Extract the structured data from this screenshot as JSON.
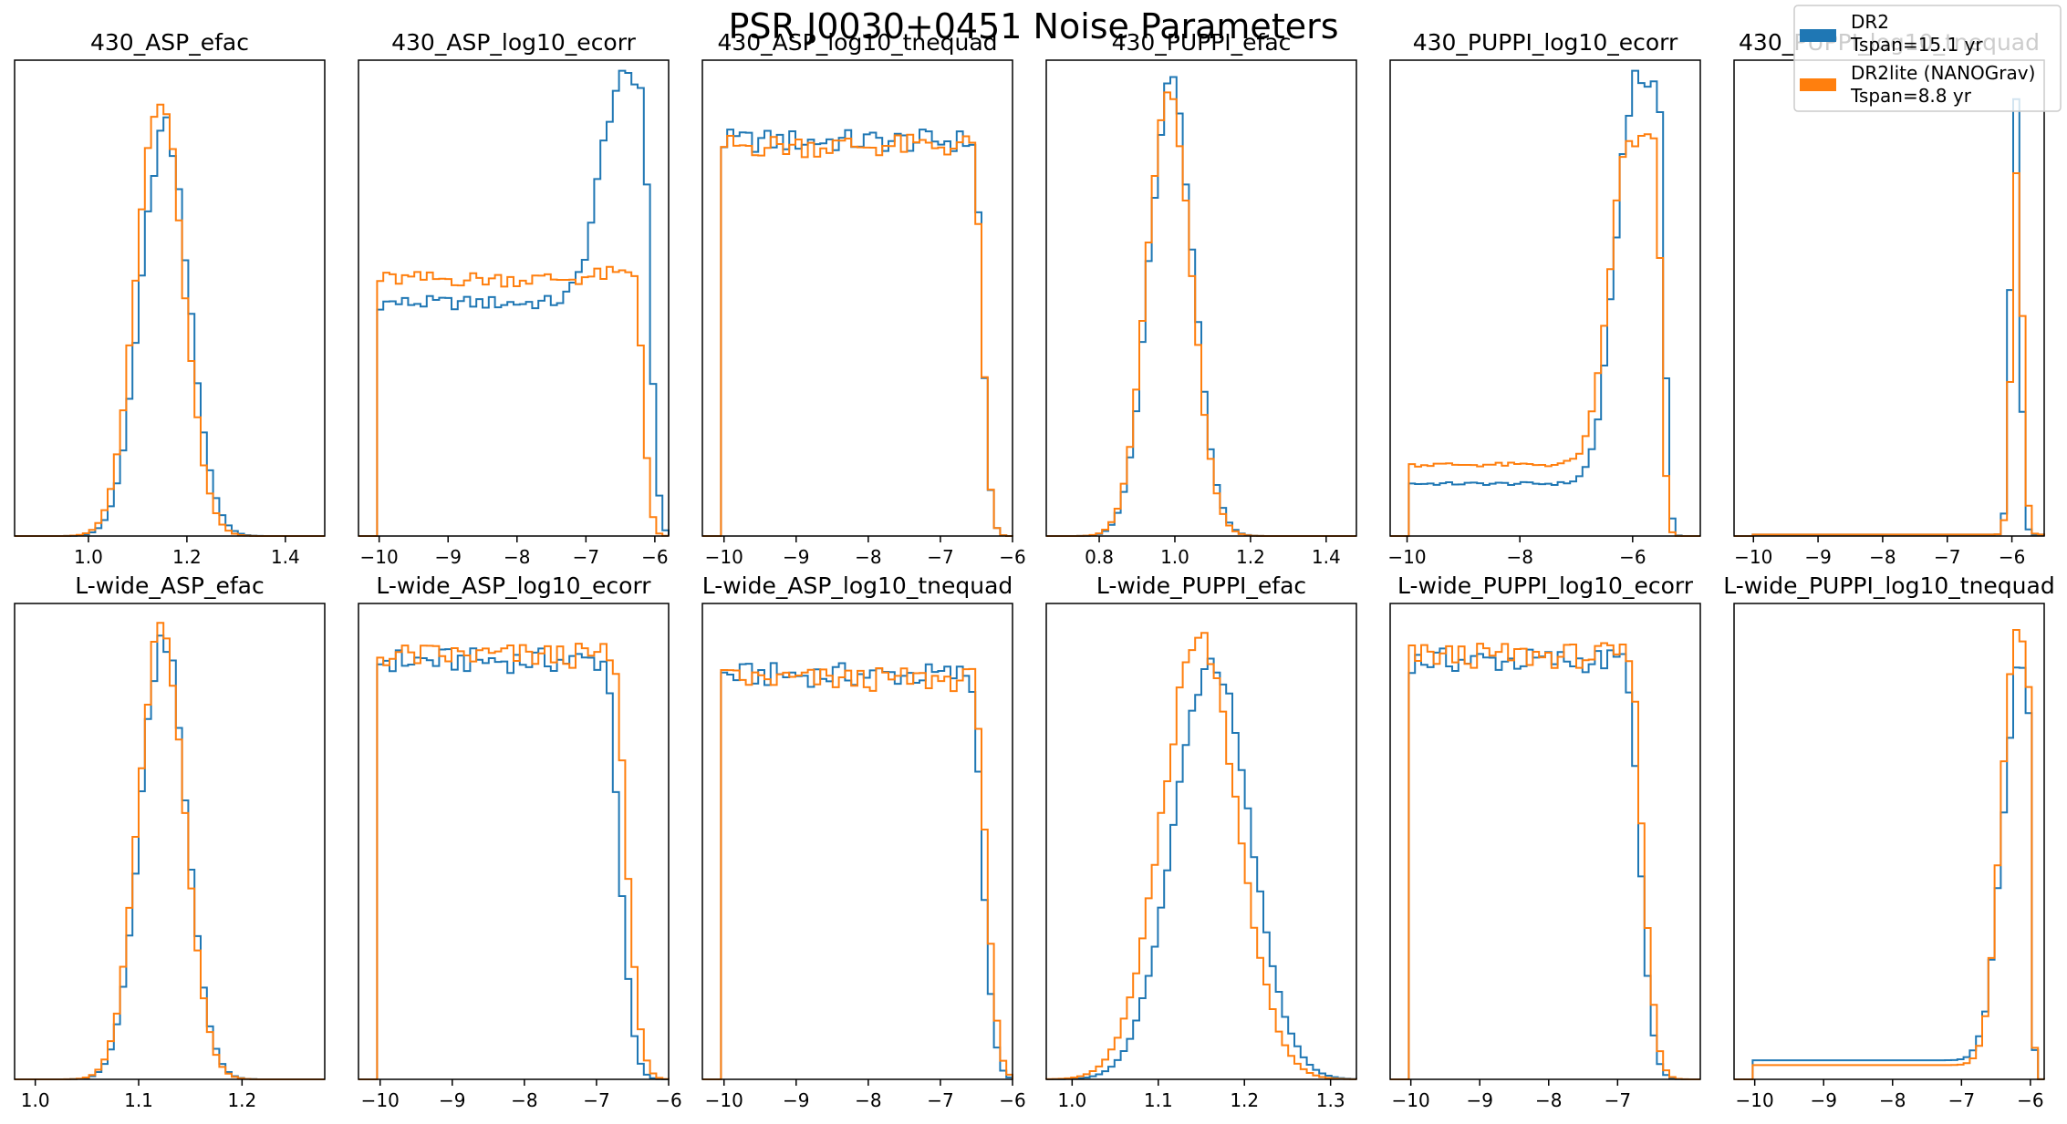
{
  "chart_data": {
    "type": "histogram-grid",
    "title": "PSR J0030+0451 Noise Parameters",
    "legend": {
      "placement": "top-right",
      "entries": [
        {
          "label_line1": "DR2",
          "label_line2": "Tspan=15.1 yr",
          "color": "#1f77b4"
        },
        {
          "label_line1": "DR2lite (NANOGrav)",
          "label_line2": "Tspan=8.8 yr",
          "color": "#ff7f0e"
        }
      ]
    },
    "panels": [
      {
        "title": "430_ASP_efac",
        "xlim": [
          0.85,
          1.48
        ],
        "ticks": [
          1.0,
          1.2,
          1.4
        ],
        "tick_labels": [
          "1.0",
          "1.2",
          "1.4"
        ],
        "series": [
          {
            "name": "DR2",
            "shape": "gauss",
            "mu": 1.155,
            "sigma": 0.048,
            "ymax": 0.86
          },
          {
            "name": "DR2lite (NANOGrav)",
            "shape": "gauss",
            "mu": 1.145,
            "sigma": 0.047,
            "ymax": 0.93
          }
        ]
      },
      {
        "title": "430_ASP_log10_ecorr",
        "xlim": [
          -10.3,
          -5.8
        ],
        "ticks": [
          -10,
          -9,
          -8,
          -7,
          -6
        ],
        "tick_labels": [
          "−10",
          "−9",
          "−8",
          "−7",
          "−6"
        ],
        "series": [
          {
            "name": "DR2",
            "shape": "flatpeak",
            "xmin": -10,
            "base": 0.49,
            "peak_at": -6.5,
            "peak_h": 0.95,
            "rise_w": 0.3,
            "cutoff": -6.2,
            "tail_w": 0.12
          },
          {
            "name": "DR2lite (NANOGrav)",
            "shape": "flatpeak",
            "xmin": -10,
            "base": 0.54,
            "peak_at": -6.6,
            "peak_h": 0.55,
            "rise_w": 0.3,
            "cutoff": -6.3,
            "tail_w": 0.12
          }
        ]
      },
      {
        "title": "430_ASP_log10_tnequad",
        "xlim": [
          -10.3,
          -6.0
        ],
        "ticks": [
          -10,
          -9,
          -8,
          -7,
          -6
        ],
        "tick_labels": [
          "−10",
          "−9",
          "−8",
          "−7",
          "−6"
        ],
        "series": [
          {
            "name": "DR2",
            "shape": "plateau",
            "xmin": -10,
            "level": 0.83,
            "cutoff": -6.55,
            "tail_w": 0.12
          },
          {
            "name": "DR2lite (NANOGrav)",
            "shape": "plateau",
            "xmin": -10,
            "level": 0.82,
            "cutoff": -6.55,
            "tail_w": 0.12
          }
        ]
      },
      {
        "title": "430_PUPPI_efac",
        "xlim": [
          0.66,
          1.48
        ],
        "ticks": [
          0.8,
          1.0,
          1.2,
          1.4
        ],
        "tick_labels": [
          "0.8",
          "1.0",
          "1.2",
          "1.4"
        ],
        "series": [
          {
            "name": "DR2",
            "shape": "gauss",
            "mu": 0.99,
            "sigma": 0.058,
            "ymax": 0.95
          },
          {
            "name": "DR2lite (NANOGrav)",
            "shape": "gauss",
            "mu": 0.985,
            "sigma": 0.058,
            "ymax": 0.94
          }
        ]
      },
      {
        "title": "430_PUPPI_log10_ecorr",
        "xlim": [
          -10.3,
          -4.8
        ],
        "ticks": [
          -10,
          -8,
          -6
        ],
        "tick_labels": [
          "−10",
          "−8",
          "−6"
        ],
        "series": [
          {
            "name": "DR2",
            "shape": "flatpeak",
            "xmin": -10,
            "base": 0.11,
            "peak_at": -5.95,
            "peak_h": 0.95,
            "rise_w": 0.35,
            "cutoff": -5.55,
            "tail_w": 0.1
          },
          {
            "name": "DR2lite (NANOGrav)",
            "shape": "flatpeak",
            "xmin": -10,
            "base": 0.15,
            "peak_at": -6.05,
            "peak_h": 0.83,
            "rise_w": 0.35,
            "cutoff": -5.6,
            "tail_w": 0.1
          }
        ]
      },
      {
        "title": "430_PUPPI_log10_tnequad",
        "xlim": [
          -10.3,
          -5.5
        ],
        "ticks": [
          -10,
          -9,
          -8,
          -7,
          -6
        ],
        "tick_labels": [
          "−10",
          "−9",
          "−8",
          "−7",
          "−6"
        ],
        "series": [
          {
            "name": "DR2",
            "shape": "spike",
            "xmin": -10,
            "base": 0.003,
            "mu": -5.95,
            "sigma": 0.07,
            "ymax": 0.97
          },
          {
            "name": "DR2lite (NANOGrav)",
            "shape": "spike",
            "xmin": -10,
            "base": 0.003,
            "mu": -5.92,
            "sigma": 0.08,
            "ymax": 0.78
          }
        ]
      },
      {
        "title": "L-wide_ASP_efac",
        "xlim": [
          0.98,
          1.28
        ],
        "ticks": [
          1.0,
          1.1,
          1.2
        ],
        "tick_labels": [
          "1.0",
          "1.1",
          "1.2"
        ],
        "series": [
          {
            "name": "DR2",
            "shape": "gauss",
            "mu": 1.124,
            "sigma": 0.022,
            "ymax": 0.93
          },
          {
            "name": "DR2lite (NANOGrav)",
            "shape": "gauss",
            "mu": 1.122,
            "sigma": 0.022,
            "ymax": 0.95
          }
        ]
      },
      {
        "title": "L-wide_ASP_log10_ecorr",
        "xlim": [
          -10.3,
          -6.0
        ],
        "ticks": [
          -10,
          -9,
          -8,
          -7,
          -6
        ],
        "tick_labels": [
          "−10",
          "−9",
          "−8",
          "−7",
          "−6"
        ],
        "series": [
          {
            "name": "DR2",
            "shape": "plateau",
            "xmin": -10,
            "level": 0.88,
            "cutoff": -6.9,
            "tail_w": 0.2
          },
          {
            "name": "DR2lite (NANOGrav)",
            "shape": "plateau",
            "xmin": -10,
            "level": 0.89,
            "cutoff": -6.8,
            "tail_w": 0.2
          }
        ]
      },
      {
        "title": "L-wide_ASP_log10_tnequad",
        "xlim": [
          -10.3,
          -6.0
        ],
        "ticks": [
          -10,
          -9,
          -8,
          -7,
          -6
        ],
        "tick_labels": [
          "−10",
          "−9",
          "−8",
          "−7",
          "−6"
        ],
        "series": [
          {
            "name": "DR2",
            "shape": "plateau",
            "xmin": -10,
            "level": 0.85,
            "cutoff": -6.6,
            "tail_w": 0.17
          },
          {
            "name": "DR2lite (NANOGrav)",
            "shape": "plateau",
            "xmin": -10,
            "level": 0.84,
            "cutoff": -6.55,
            "tail_w": 0.17
          }
        ]
      },
      {
        "title": "L-wide_PUPPI_efac",
        "xlim": [
          0.97,
          1.33
        ],
        "ticks": [
          1.0,
          1.1,
          1.2,
          1.3
        ],
        "tick_labels": [
          "1.0",
          "1.1",
          "1.2",
          "1.3"
        ],
        "series": [
          {
            "name": "DR2",
            "shape": "gauss",
            "mu": 1.162,
            "sigma": 0.044,
            "ymax": 0.88
          },
          {
            "name": "DR2lite (NANOGrav)",
            "shape": "gauss",
            "mu": 1.148,
            "sigma": 0.044,
            "ymax": 0.92
          }
        ]
      },
      {
        "title": "L-wide_PUPPI_log10_ecorr",
        "xlim": [
          -10.3,
          -5.8
        ],
        "ticks": [
          -10,
          -9,
          -8,
          -7
        ],
        "tick_labels": [
          "−10",
          "−9",
          "−8",
          "−7"
        ],
        "series": [
          {
            "name": "DR2",
            "shape": "plateau",
            "xmin": -10,
            "level": 0.88,
            "cutoff": -6.9,
            "tail_w": 0.2
          },
          {
            "name": "DR2lite (NANOGrav)",
            "shape": "plateau",
            "xmin": -10,
            "level": 0.89,
            "cutoff": -6.85,
            "tail_w": 0.2
          }
        ]
      },
      {
        "title": "L-wide_PUPPI_log10_tnequad",
        "xlim": [
          -10.3,
          -5.8
        ],
        "ticks": [
          -10,
          -9,
          -8,
          -7,
          -6
        ],
        "tick_labels": [
          "−10",
          "−9",
          "−8",
          "−7",
          "−6"
        ],
        "series": [
          {
            "name": "DR2",
            "shape": "flatpeak",
            "xmin": -10,
            "base": 0.04,
            "peak_at": -6.15,
            "peak_h": 0.86,
            "rise_w": 0.25,
            "cutoff": -6.05,
            "tail_w": 0.05
          },
          {
            "name": "DR2lite (NANOGrav)",
            "shape": "flatpeak",
            "xmin": -10,
            "base": 0.03,
            "peak_at": -6.2,
            "peak_h": 0.93,
            "rise_w": 0.22,
            "cutoff": -6.05,
            "tail_w": 0.05
          }
        ]
      }
    ]
  }
}
